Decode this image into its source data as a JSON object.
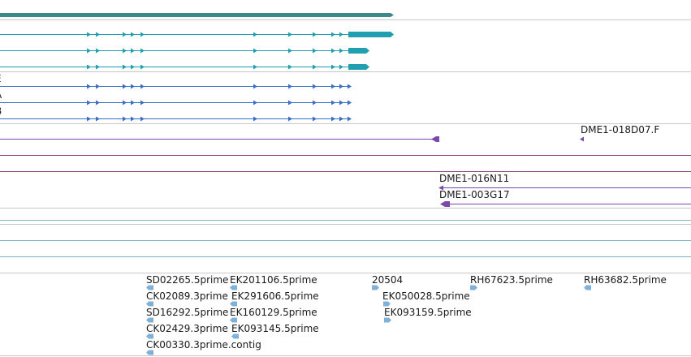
{
  "colors": {
    "divider": "#c8c8c8",
    "gene_span": "#3a8a8a",
    "transcript_teal": "#1f9fb0",
    "transcript_blue": "#3a6fc4",
    "clone_purple": "#7a4aa8",
    "clone_line": "#8a3f7a",
    "empty_track": "#7ab8c8",
    "est_arrow": "#7fb0d8"
  },
  "tracks": {
    "transcript_labels": [
      {
        "text": "E"
      },
      {
        "text": "A"
      },
      {
        "text": "B"
      }
    ],
    "clones": [
      {
        "text": "DME1-018D07.F"
      },
      {
        "text": "DME1-016N11"
      },
      {
        "text": "DME1-003G17"
      }
    ],
    "ests": [
      {
        "text": "SD02265.5prime"
      },
      {
        "text": "EK201106.5prime"
      },
      {
        "text": "20504"
      },
      {
        "text": "RH67623.5prime"
      },
      {
        "text": "RH63682.5prime"
      },
      {
        "text": "CK02089.3prime"
      },
      {
        "text": "EK291606.5prime"
      },
      {
        "text": "EK050028.5prime"
      },
      {
        "text": "SD16292.5prime"
      },
      {
        "text": "EK160129.5prime"
      },
      {
        "text": "EK093159.5prime"
      },
      {
        "text": "CK02429.3prime"
      },
      {
        "text": "EK093145.5prime"
      },
      {
        "text": "CK00330.3prime.contig"
      }
    ]
  }
}
